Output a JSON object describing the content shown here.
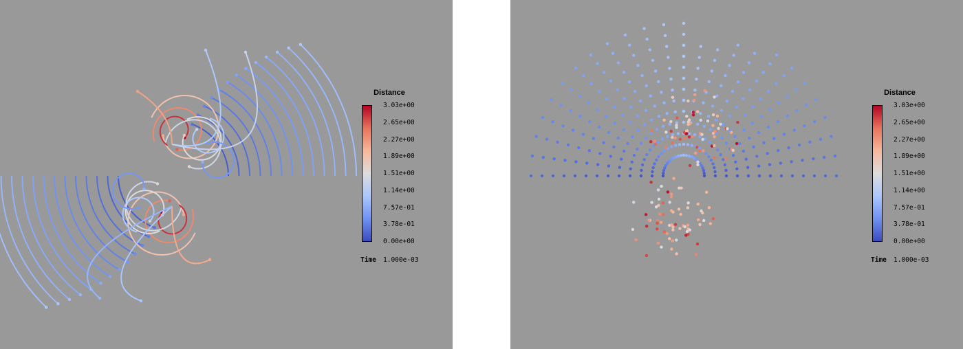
{
  "colormap": {
    "name": "coolwarm",
    "stops": [
      "#3b4cc0",
      "#6f92f3",
      "#aac7fd",
      "#dddcdc",
      "#f7b89c",
      "#e7745b",
      "#b40426"
    ]
  },
  "background_color": "#999999",
  "chart_data": [
    {
      "type": "scatter",
      "variant": "trajectories",
      "legend": {
        "title": "Distance",
        "ticks": [
          "3.03e+00",
          "2.65e+00",
          "2.27e+00",
          "1.89e+00",
          "1.51e+00",
          "1.14e+00",
          "7.57e-01",
          "3.78e-01",
          "0.00e+00"
        ],
        "range": [
          0.0,
          3.03
        ],
        "placement": "right"
      },
      "time_label": "Time",
      "time_value": "1.000e-03"
    },
    {
      "type": "scatter",
      "variant": "points",
      "legend": {
        "title": "Distance",
        "ticks": [
          "3.03e+00",
          "2.65e+00",
          "2.27e+00",
          "1.89e+00",
          "1.51e+00",
          "1.14e+00",
          "7.57e-01",
          "3.78e-01",
          "0.00e+00"
        ],
        "range": [
          0.0,
          3.03
        ],
        "placement": "right"
      },
      "time_label": "Time",
      "time_value": "1.000e-03"
    }
  ]
}
